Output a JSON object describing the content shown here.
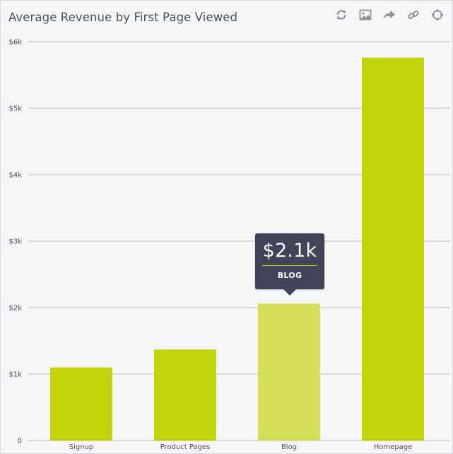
{
  "title": "Average Revenue by First Page Viewed",
  "toolbar": [
    {
      "name": "refresh-icon"
    },
    {
      "name": "image-icon"
    },
    {
      "name": "share-icon"
    },
    {
      "name": "link-icon"
    },
    {
      "name": "crosshair-icon"
    }
  ],
  "tooltip": {
    "value": "$2.1k",
    "label": "BLOG"
  },
  "colors": {
    "bar": "#c3d40a",
    "bar_highlight": "#d4df57",
    "grid": "#b9bcc2",
    "tooltip_bg": "#414459",
    "icon": "#8c919c"
  },
  "chart_data": {
    "type": "bar",
    "title": "Average Revenue by First Page Viewed",
    "xlabel": "",
    "ylabel": "",
    "categories": [
      "Signup",
      "Product Pages",
      "Blog",
      "Homepage"
    ],
    "values": [
      1100,
      1370,
      2060,
      5760
    ],
    "highlighted": "Blog",
    "ylim": [
      0,
      6000
    ],
    "yticks": [
      0,
      1000,
      2000,
      3000,
      4000,
      5000,
      6000
    ],
    "ytick_labels": [
      "0",
      "$1k",
      "$2k",
      "$3k",
      "$4k",
      "$5k",
      "$6k"
    ],
    "grid": true,
    "legend": "none"
  }
}
